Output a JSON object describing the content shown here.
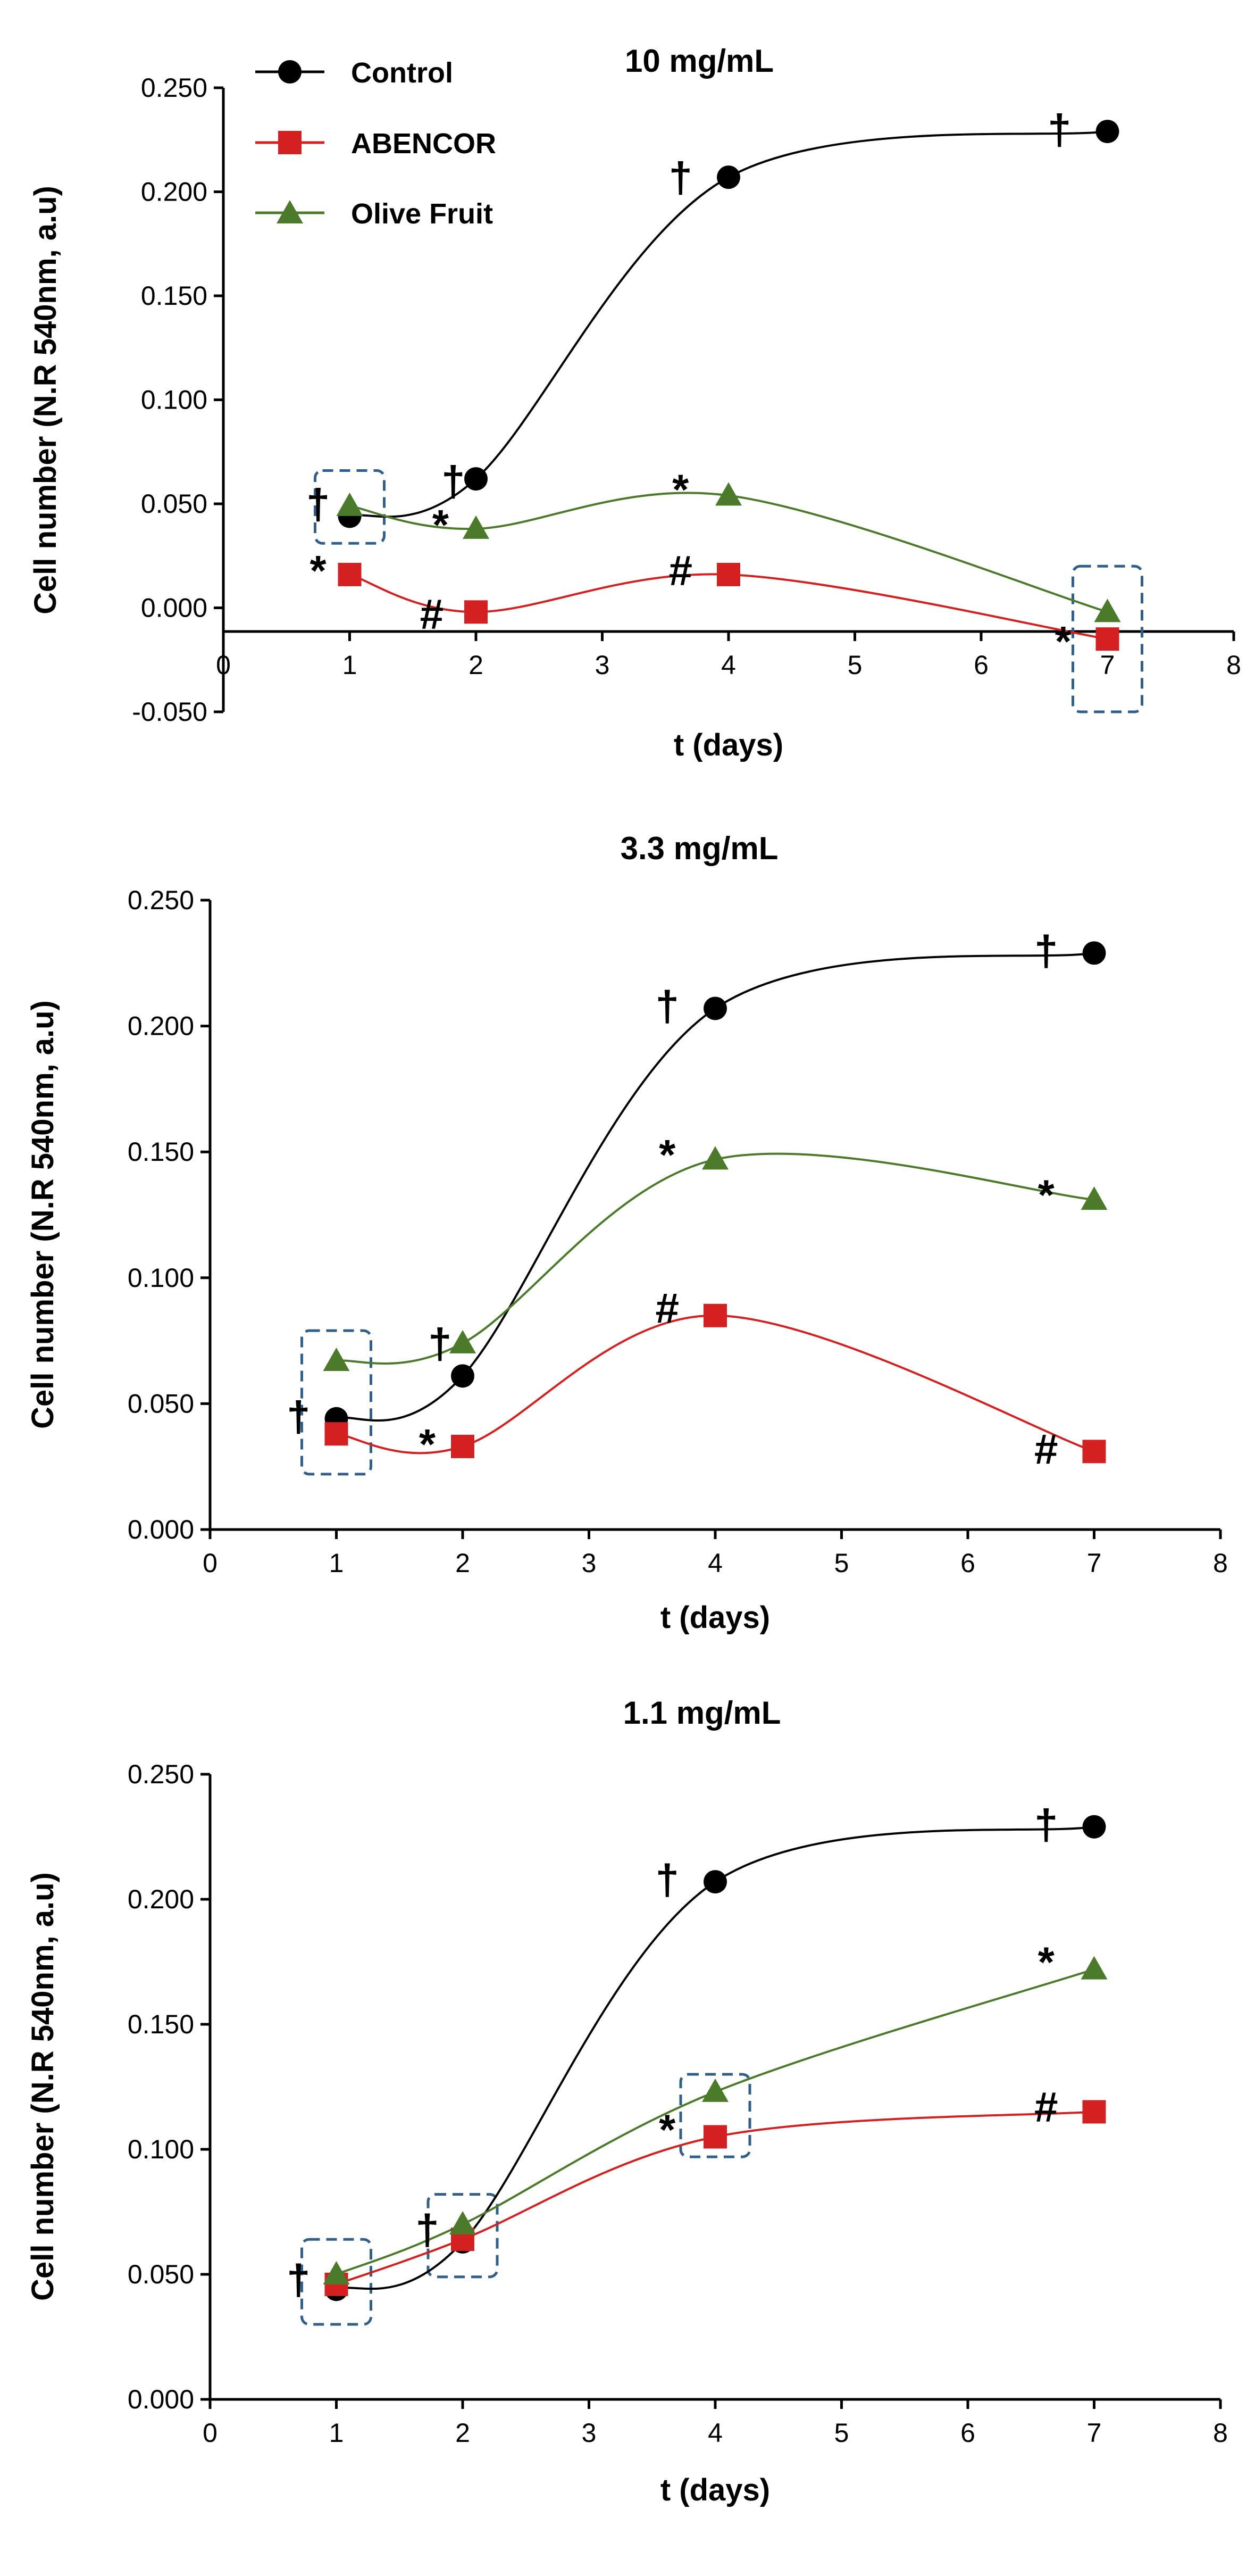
{
  "colors": {
    "Control": "#000000",
    "ABENCOR": "#d42020",
    "Olive Fruit": "#4a7a2a",
    "box": "#2f5f8a"
  },
  "chart_data": [
    {
      "type": "line",
      "title": "10 mg/mL",
      "xlabel": "t (days)",
      "ylabel": "Cell number (N.R 540nm, a.u)",
      "xlim": [
        0,
        8
      ],
      "ylim": [
        -0.05,
        0.25
      ],
      "xticks": [
        "0",
        "1",
        "2",
        "3",
        "4",
        "5",
        "6",
        "7",
        "8"
      ],
      "yticks": [
        "-0.050",
        "0.000",
        "0.050",
        "0.100",
        "0.150",
        "0.200",
        "0.250"
      ],
      "legend": [
        "Control",
        "ABENCOR",
        "Olive Fruit"
      ],
      "x": [
        1,
        2,
        4,
        7
      ],
      "series": [
        {
          "name": "Control",
          "marker": "circle",
          "values": [
            0.044,
            0.062,
            0.207,
            0.229
          ]
        },
        {
          "name": "ABENCOR",
          "marker": "square",
          "values": [
            0.016,
            -0.002,
            0.016,
            -0.015
          ]
        },
        {
          "name": "Olive Fruit",
          "marker": "triangle",
          "values": [
            0.049,
            0.038,
            0.054,
            -0.002
          ]
        }
      ],
      "annotations": [
        {
          "text": "†",
          "x": 0.75,
          "y": 0.05
        },
        {
          "text": "*",
          "x": 0.75,
          "y": 0.018
        },
        {
          "text": "*",
          "x": 1.72,
          "y": 0.04
        },
        {
          "text": "#",
          "x": 1.65,
          "y": -0.003
        },
        {
          "text": "†",
          "x": 1.82,
          "y": 0.061
        },
        {
          "text": "*",
          "x": 3.62,
          "y": 0.057
        },
        {
          "text": "#",
          "x": 3.62,
          "y": 0.018
        },
        {
          "text": "†",
          "x": 3.62,
          "y": 0.207
        },
        {
          "text": "†",
          "x": 6.62,
          "y": 0.23
        },
        {
          "text": "*",
          "x": 6.65,
          "y": -0.016
        }
      ],
      "boxes": [
        [
          1,
          0.031,
          0.066
        ],
        [
          7,
          -0.05,
          0.02
        ]
      ]
    },
    {
      "type": "line",
      "title": "3.3 mg/mL",
      "xlabel": "t (days)",
      "ylabel": "Cell number (N.R 540nm, a.u)",
      "xlim": [
        0,
        8
      ],
      "ylim": [
        0,
        0.25
      ],
      "xticks": [
        "0",
        "1",
        "2",
        "3",
        "4",
        "5",
        "6",
        "7",
        "8"
      ],
      "yticks": [
        "0.000",
        "0.050",
        "0.100",
        "0.150",
        "0.200",
        "0.250"
      ],
      "x": [
        1,
        2,
        4,
        7
      ],
      "series": [
        {
          "name": "Control",
          "marker": "circle",
          "values": [
            0.044,
            0.061,
            0.207,
            0.229
          ]
        },
        {
          "name": "ABENCOR",
          "marker": "square",
          "values": [
            0.038,
            0.033,
            0.085,
            0.031
          ]
        },
        {
          "name": "Olive Fruit",
          "marker": "triangle",
          "values": [
            0.067,
            0.074,
            0.147,
            0.131
          ]
        }
      ],
      "annotations": [
        {
          "text": "†",
          "x": 0.7,
          "y": 0.045
        },
        {
          "text": "*",
          "x": 1.72,
          "y": 0.034
        },
        {
          "text": "†",
          "x": 1.82,
          "y": 0.074
        },
        {
          "text": "*",
          "x": 3.62,
          "y": 0.149
        },
        {
          "text": "#",
          "x": 3.62,
          "y": 0.088
        },
        {
          "text": "†",
          "x": 3.62,
          "y": 0.208
        },
        {
          "text": "†",
          "x": 6.62,
          "y": 0.23
        },
        {
          "text": "*",
          "x": 6.62,
          "y": 0.133
        },
        {
          "text": "#",
          "x": 6.62,
          "y": 0.032
        }
      ],
      "boxes": [
        [
          1,
          0.022,
          0.079
        ]
      ]
    },
    {
      "type": "line",
      "title": "1.1 mg/mL",
      "xlabel": "t (days)",
      "ylabel": "Cell number (N.R 540nm, a.u)",
      "xlim": [
        0,
        8
      ],
      "ylim": [
        0,
        0.25
      ],
      "xticks": [
        "0",
        "1",
        "2",
        "3",
        "4",
        "5",
        "6",
        "7",
        "8"
      ],
      "yticks": [
        "0.000",
        "0.050",
        "0.100",
        "0.150",
        "0.200",
        "0.250"
      ],
      "x": [
        1,
        2,
        4,
        7
      ],
      "series": [
        {
          "name": "Control",
          "marker": "circle",
          "values": [
            0.044,
            0.063,
            0.207,
            0.229
          ]
        },
        {
          "name": "ABENCOR",
          "marker": "square",
          "values": [
            0.046,
            0.064,
            0.105,
            0.115
          ]
        },
        {
          "name": "Olive Fruit",
          "marker": "triangle",
          "values": [
            0.05,
            0.07,
            0.123,
            0.172
          ]
        }
      ],
      "annotations": [
        {
          "text": "†",
          "x": 0.7,
          "y": 0.048
        },
        {
          "text": "†",
          "x": 1.72,
          "y": 0.068
        },
        {
          "text": "*",
          "x": 3.62,
          "y": 0.108
        },
        {
          "text": "†",
          "x": 3.62,
          "y": 0.208
        },
        {
          "text": "*",
          "x": 6.62,
          "y": 0.175
        },
        {
          "text": "#",
          "x": 6.62,
          "y": 0.117
        },
        {
          "text": "†",
          "x": 6.62,
          "y": 0.23
        }
      ],
      "boxes": [
        [
          1,
          0.03,
          0.064
        ],
        [
          2,
          0.049,
          0.082
        ],
        [
          4,
          0.097,
          0.13
        ]
      ]
    }
  ]
}
